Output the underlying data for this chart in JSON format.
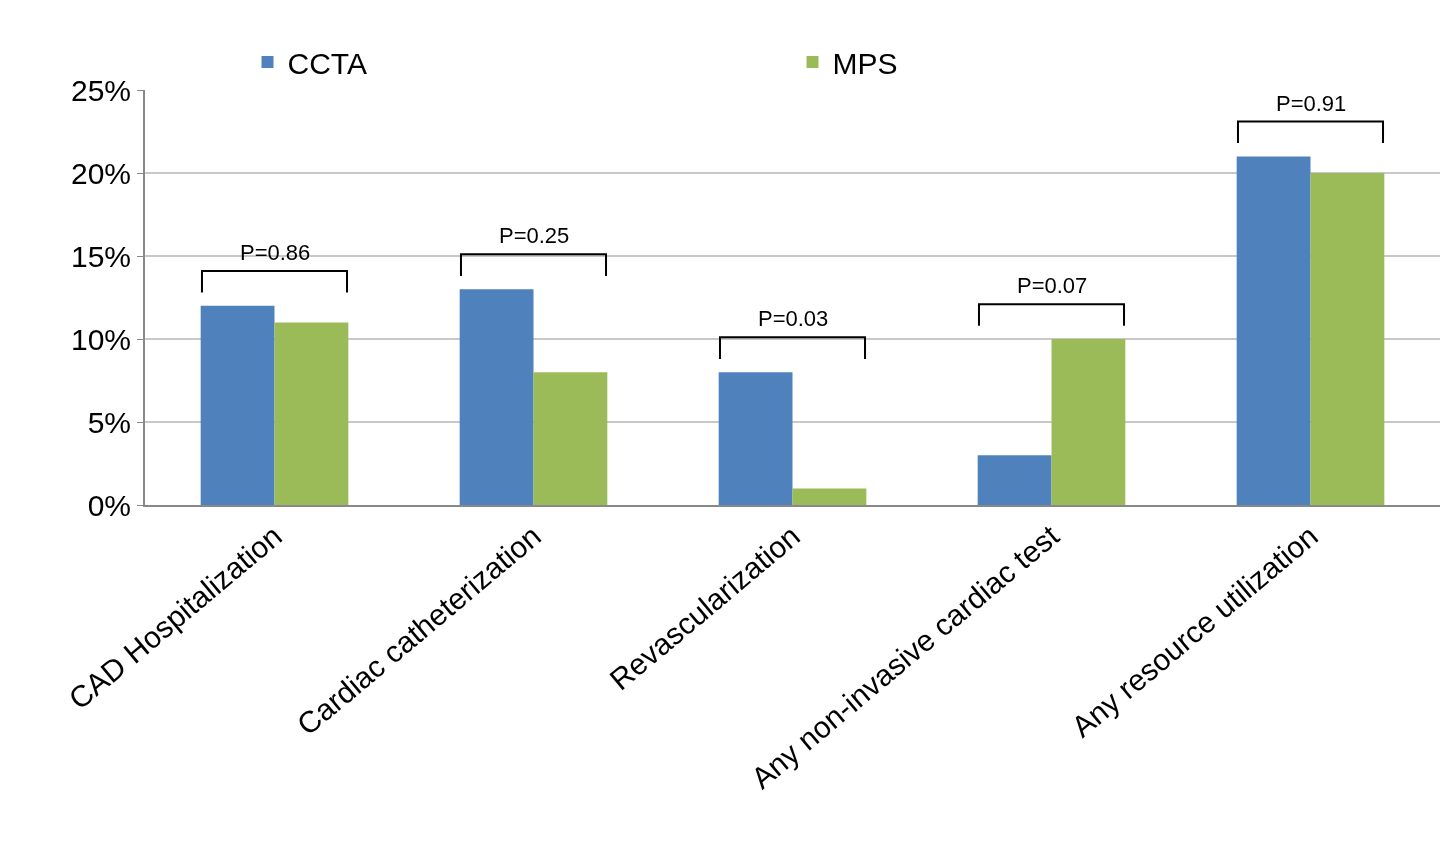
{
  "chart_data": {
    "type": "bar",
    "categories": [
      "CAD Hospitalization",
      "Cardiac catheterization",
      "Revascularization",
      "Any non-invasive cardiac test",
      "Any resource utilization"
    ],
    "series": [
      {
        "name": "CCTA",
        "color": "#4f81bd",
        "values": [
          12,
          13,
          8,
          3,
          21
        ]
      },
      {
        "name": "MPS",
        "color": "#9bbb59",
        "values": [
          11,
          8,
          1,
          10,
          20
        ]
      }
    ],
    "ylim": [
      0,
      25
    ],
    "yticks": [
      {
        "value": 0,
        "label": "0%"
      },
      {
        "value": 5,
        "label": "5%"
      },
      {
        "value": 10,
        "label": "10%"
      },
      {
        "value": 15,
        "label": "15%"
      },
      {
        "value": 20,
        "label": "20%"
      },
      {
        "value": 25,
        "label": "25%"
      }
    ],
    "grid": "y",
    "legend": "top",
    "annotations": [
      "P=0.86",
      "P=0.25",
      "P=0.03",
      "P=0.07",
      "P=0.91"
    ]
  }
}
